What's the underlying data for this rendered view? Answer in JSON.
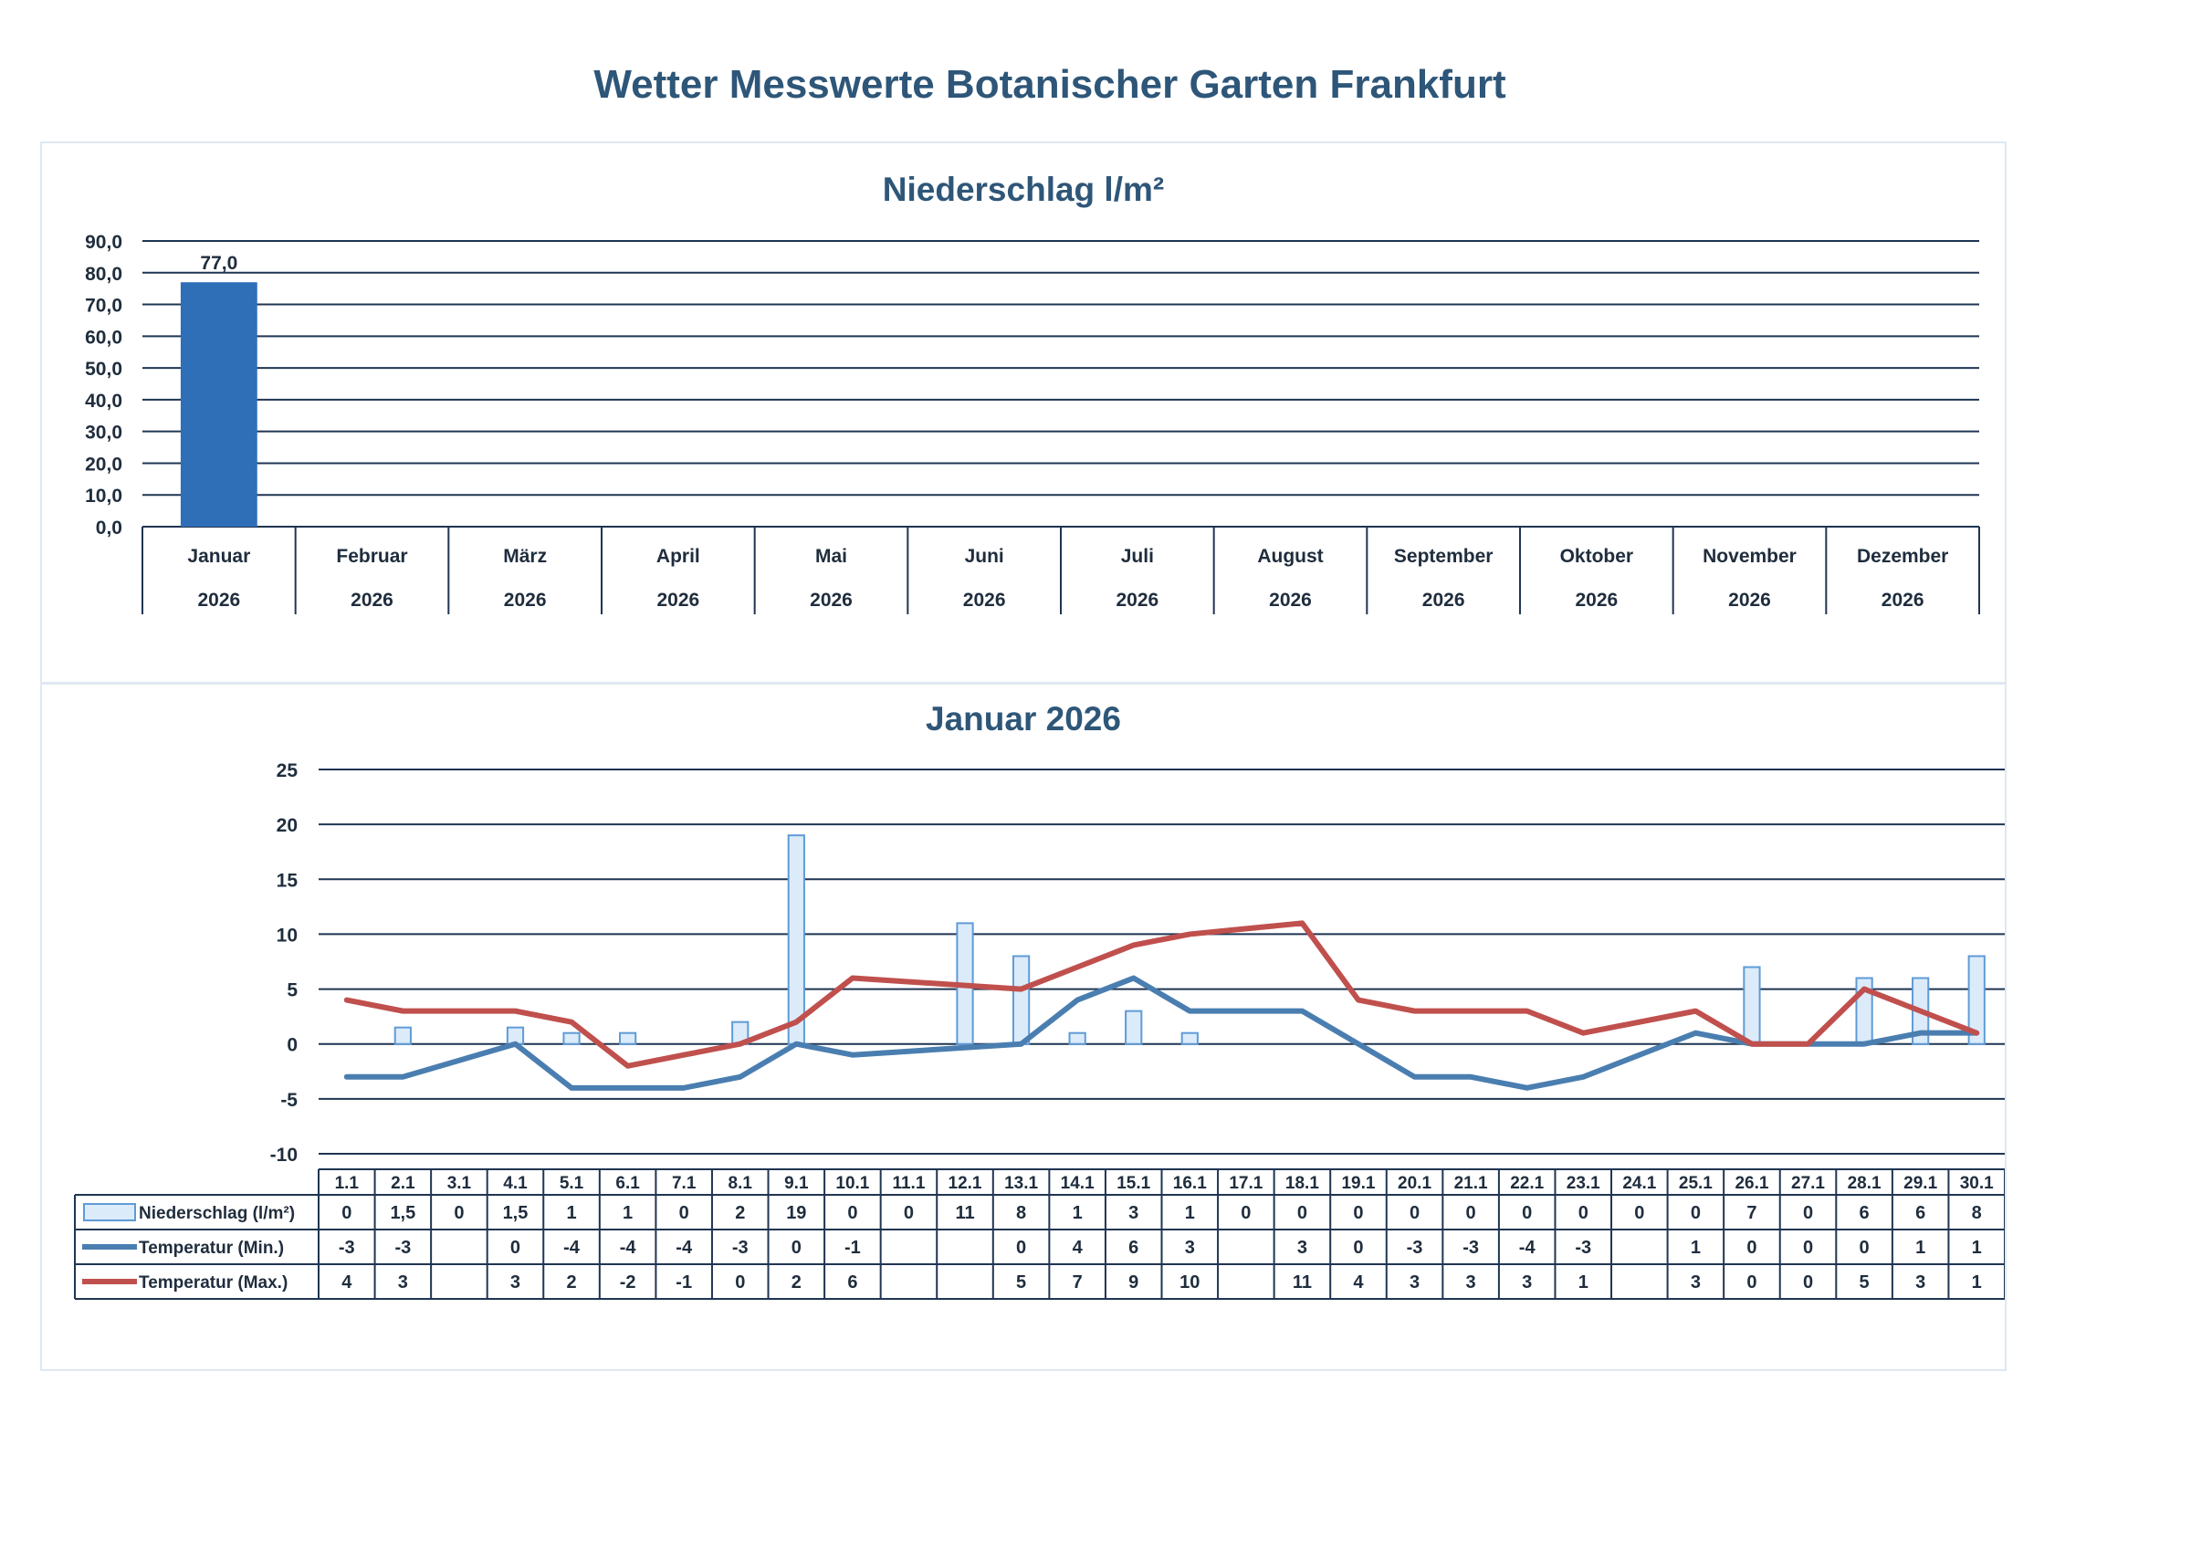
{
  "page_title": "Wetter Messwerte Botanischer Garten Frankfurt",
  "colors": {
    "bar_fill": "#2e6fb8",
    "bar_light_fill": "#dcebfa",
    "bar_light_stroke": "#5f9bd6",
    "line_min": "#4a7eb0",
    "line_max": "#c0504d",
    "grid": "#1f3552",
    "title": "#2e5678"
  },
  "chart_data": [
    {
      "type": "bar",
      "title": "Niederschlag l/m²",
      "ylim": [
        0,
        90
      ],
      "yticks": [
        "90,0",
        "80,0",
        "70,0",
        "60,0",
        "50,0",
        "40,0",
        "30,0",
        "20,0",
        "10,0",
        "0,0"
      ],
      "categories": [
        {
          "month": "Januar",
          "year": "2026"
        },
        {
          "month": "Februar",
          "year": "2026"
        },
        {
          "month": "März",
          "year": "2026"
        },
        {
          "month": "April",
          "year": "2026"
        },
        {
          "month": "Mai",
          "year": "2026"
        },
        {
          "month": "Juni",
          "year": "2026"
        },
        {
          "month": "Juli",
          "year": "2026"
        },
        {
          "month": "August",
          "year": "2026"
        },
        {
          "month": "September",
          "year": "2026"
        },
        {
          "month": "Oktober",
          "year": "2026"
        },
        {
          "month": "November",
          "year": "2026"
        },
        {
          "month": "Dezember",
          "year": "2026"
        }
      ],
      "values": [
        77.0,
        null,
        null,
        null,
        null,
        null,
        null,
        null,
        null,
        null,
        null,
        null
      ],
      "data_labels": [
        "77,0",
        "",
        "",
        "",
        "",
        "",
        "",
        "",
        "",
        "",
        "",
        ""
      ],
      "grid": true
    },
    {
      "type": "bar+line",
      "title": "Januar 2026",
      "ylim": [
        -10,
        25
      ],
      "yticks": [
        "25",
        "20",
        "15",
        "10",
        "5",
        "0",
        "-5",
        "-10"
      ],
      "categories": [
        "1.1",
        "2.1",
        "3.1",
        "4.1",
        "5.1",
        "6.1",
        "7.1",
        "8.1",
        "9.1",
        "10.1",
        "11.1",
        "12.1",
        "13.1",
        "14.1",
        "15.1",
        "16.1",
        "17.1",
        "18.1",
        "19.1",
        "20.1",
        "21.1",
        "22.1",
        "23.1",
        "24.1",
        "25.1",
        "26.1",
        "27.1",
        "28.1",
        "29.1",
        "30.1"
      ],
      "series": [
        {
          "name": "Niederschlag (l/m²)",
          "kind": "bar",
          "values": [
            0,
            1.5,
            0,
            1.5,
            1,
            1,
            0,
            2,
            19,
            0,
            0,
            11,
            8,
            1,
            3,
            1,
            0,
            0,
            0,
            0,
            0,
            0,
            0,
            0,
            0,
            7,
            0,
            6,
            6,
            8
          ],
          "labels": [
            "0",
            "1,5",
            "0",
            "1,5",
            "1",
            "1",
            "0",
            "2",
            "19",
            "0",
            "0",
            "11",
            "8",
            "1",
            "3",
            "1",
            "0",
            "0",
            "0",
            "0",
            "0",
            "0",
            "0",
            "0",
            "0",
            "7",
            "0",
            "6",
            "6",
            "8"
          ]
        },
        {
          "name": "Temperatur (Min.)",
          "kind": "line",
          "values": [
            -3,
            -3,
            null,
            0,
            -4,
            -4,
            -4,
            -3,
            0,
            -1,
            null,
            null,
            0,
            4,
            6,
            3,
            null,
            3,
            0,
            -3,
            -3,
            -4,
            -3,
            null,
            1,
            0,
            0,
            0,
            1,
            1
          ],
          "labels": [
            "-3",
            "-3",
            "",
            "0",
            "-4",
            "-4",
            "-4",
            "-3",
            "0",
            "-1",
            "",
            "",
            "0",
            "4",
            "6",
            "3",
            "",
            "3",
            "0",
            "-3",
            "-3",
            "-4",
            "-3",
            "",
            "1",
            "0",
            "0",
            "0",
            "1",
            "1"
          ]
        },
        {
          "name": "Temperatur (Max.)",
          "kind": "line",
          "values": [
            4,
            3,
            null,
            3,
            2,
            -2,
            -1,
            0,
            2,
            6,
            null,
            null,
            5,
            7,
            9,
            10,
            null,
            11,
            4,
            3,
            3,
            3,
            1,
            null,
            3,
            0,
            0,
            5,
            3,
            1
          ],
          "labels": [
            "4",
            "3",
            "",
            "3",
            "2",
            "-2",
            "-1",
            "0",
            "2",
            "6",
            "",
            "",
            "5",
            "7",
            "9",
            "10",
            "",
            "11",
            "4",
            "3",
            "3",
            "3",
            "1",
            "",
            "3",
            "0",
            "0",
            "5",
            "3",
            "1"
          ]
        }
      ],
      "grid": true,
      "legend": "table-left"
    }
  ]
}
